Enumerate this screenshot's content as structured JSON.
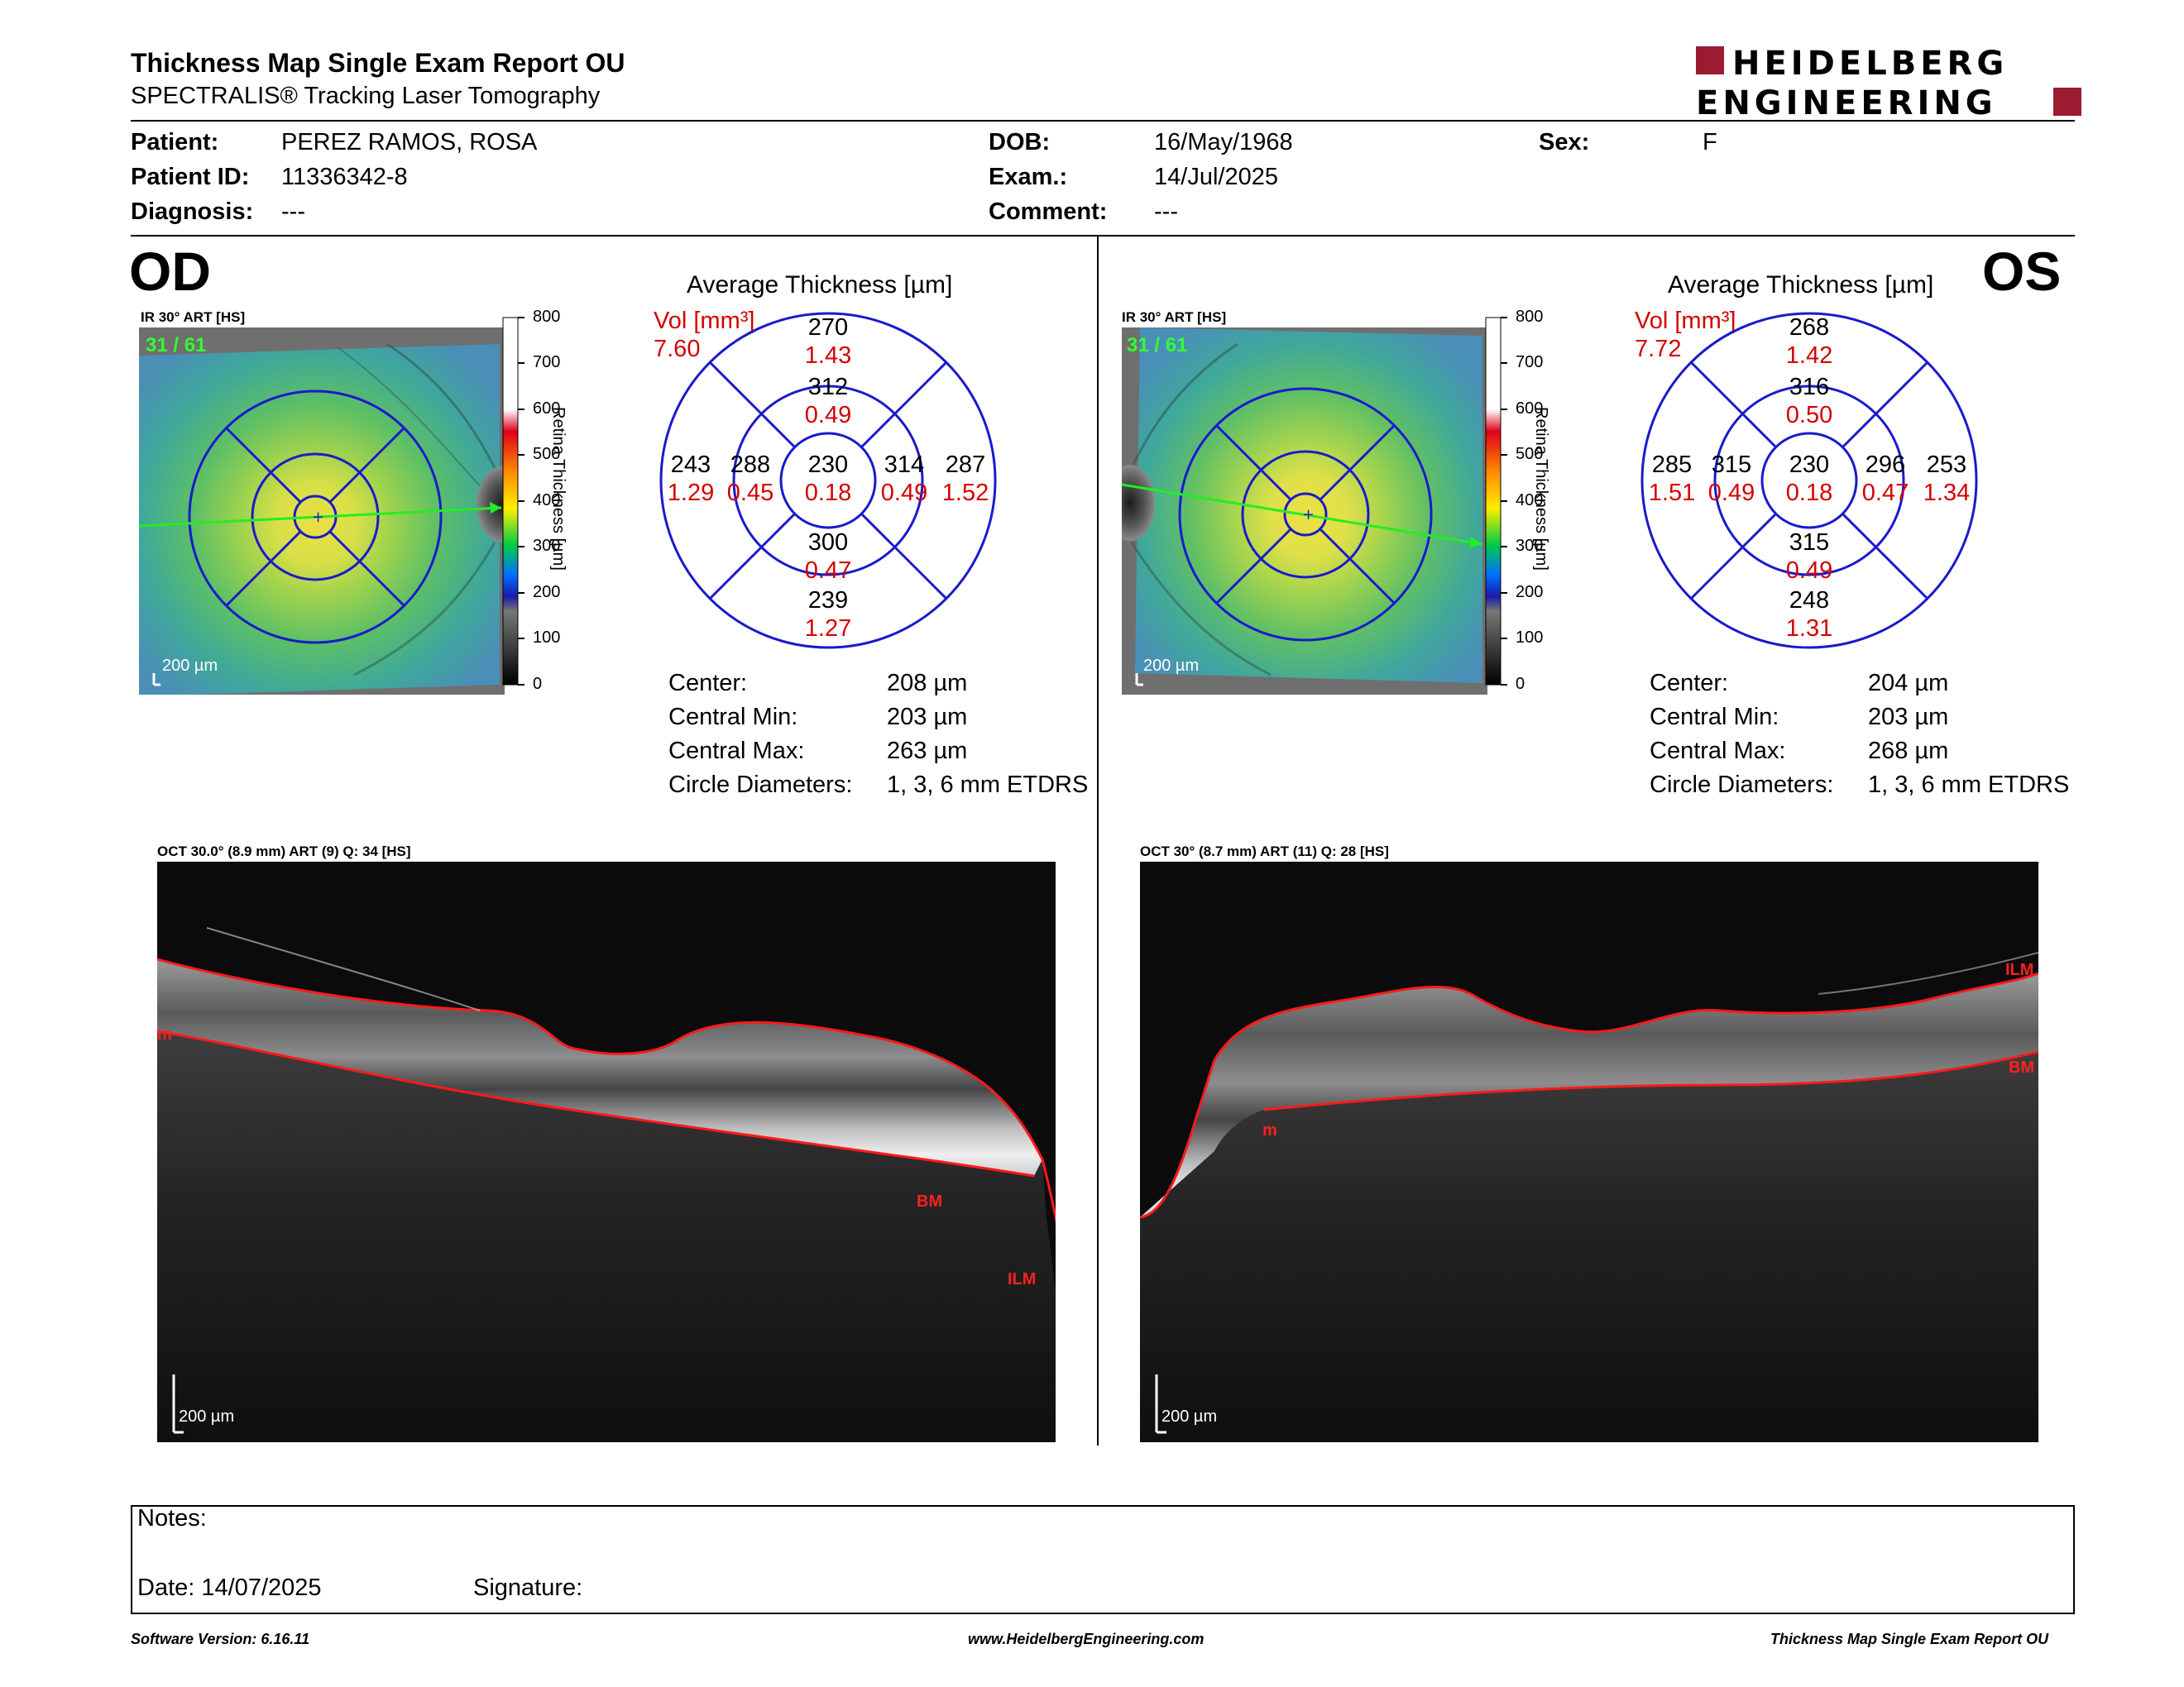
{
  "header": {
    "title": "Thickness Map Single Exam Report OU",
    "subtitle": "SPECTRALIS® Tracking Laser Tomography",
    "logo_line1": "HEIDELBERG",
    "logo_line2": "ENGINEERING"
  },
  "patient": {
    "patient_label": "Patient:",
    "patient_value": "PEREZ RAMOS, ROSA",
    "id_label": "Patient ID:",
    "id_value": "11336342-8",
    "diagnosis_label": "Diagnosis:",
    "diagnosis_value": "---",
    "dob_label": "DOB:",
    "dob_value": "16/May/1968",
    "exam_label": "Exam.:",
    "exam_value": "14/Jul/2025",
    "comment_label": "Comment:",
    "comment_value": "---",
    "sex_label": "Sex:",
    "sex_value": "F"
  },
  "colorbar": {
    "ticks": [
      "800",
      "700",
      "600",
      "500",
      "400",
      "300",
      "200",
      "100",
      "0"
    ],
    "label": "Retina Thickness [µm]"
  },
  "od": {
    "eye": "OD",
    "ir_label": "IR 30° ART [HS]",
    "frame": "31 / 61",
    "scale": "200 µm",
    "avg_title": "Average Thickness [µm]",
    "vol_label": "Vol [mm³]",
    "vol_value": "7.60",
    "sectors": {
      "outer_sup": {
        "t": "270",
        "v": "1.43"
      },
      "inner_sup": {
        "t": "312",
        "v": "0.49"
      },
      "outer_left": {
        "t": "243",
        "v": "1.29"
      },
      "inner_left": {
        "t": "288",
        "v": "0.45"
      },
      "center": {
        "t": "230",
        "v": "0.18"
      },
      "inner_right": {
        "t": "314",
        "v": "0.49"
      },
      "outer_right": {
        "t": "287",
        "v": "1.52"
      },
      "inner_inf": {
        "t": "300",
        "v": "0.47"
      },
      "outer_inf": {
        "t": "239",
        "v": "1.27"
      }
    },
    "stats": {
      "center_label": "Center:",
      "center_value": "208 µm",
      "min_label": "Central Min:",
      "min_value": "203 µm",
      "max_label": "Central Max:",
      "max_value": "263 µm",
      "diam_label": "Circle Diameters:",
      "diam_value": "1, 3, 6 mm ETDRS"
    },
    "oct_label": "OCT 30.0° (8.9 mm) ART (9) Q: 34 [HS]",
    "oct_scale": "200 µm",
    "oct_tags": [
      "ILM",
      "BM",
      "m"
    ]
  },
  "os": {
    "eye": "OS",
    "ir_label": "IR 30° ART [HS]",
    "frame": "31 / 61",
    "scale": "200 µm",
    "avg_title": "Average Thickness [µm]",
    "vol_label": "Vol [mm³]",
    "vol_value": "7.72",
    "sectors": {
      "outer_sup": {
        "t": "268",
        "v": "1.42"
      },
      "inner_sup": {
        "t": "316",
        "v": "0.50"
      },
      "outer_left": {
        "t": "285",
        "v": "1.51"
      },
      "inner_left": {
        "t": "315",
        "v": "0.49"
      },
      "center": {
        "t": "230",
        "v": "0.18"
      },
      "inner_right": {
        "t": "296",
        "v": "0.47"
      },
      "outer_right": {
        "t": "253",
        "v": "1.34"
      },
      "inner_inf": {
        "t": "315",
        "v": "0.49"
      },
      "outer_inf": {
        "t": "248",
        "v": "1.31"
      }
    },
    "stats": {
      "center_label": "Center:",
      "center_value": "204 µm",
      "min_label": "Central Min:",
      "min_value": "203 µm",
      "max_label": "Central Max:",
      "max_value": "268 µm",
      "diam_label": "Circle Diameters:",
      "diam_value": "1, 3, 6 mm ETDRS"
    },
    "oct_label": "OCT 30° (8.7 mm) ART (11) Q: 28 [HS]",
    "oct_scale": "200 µm",
    "oct_tags": [
      "ILM",
      "BM",
      "m"
    ]
  },
  "notes": {
    "notes_label": "Notes:",
    "date_label": "Date: 14/07/2025",
    "signature_label": "Signature:"
  },
  "footer": {
    "software": "Software Version: 6.16.11",
    "website": "www.HeidelbergEngineering.com",
    "report": "Thickness Map Single Exam Report OU"
  },
  "colors": {
    "ring": "#1a1acc",
    "red": "#d40000",
    "logo_red": "#9b1b30"
  }
}
